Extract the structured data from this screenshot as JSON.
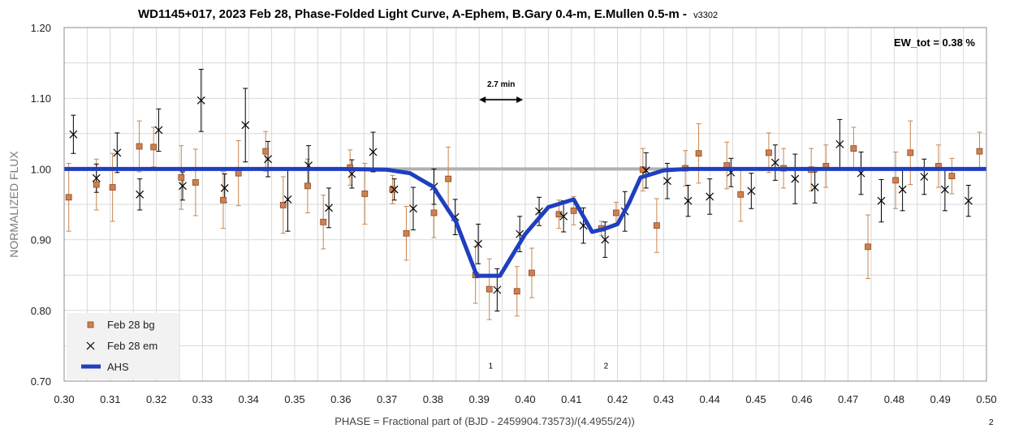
{
  "chart_data": {
    "type": "scatter",
    "title": "WD1145+017, 2023 Feb 28, Phase-Folded Light Curve, A-Ephem, B.Gary 0.4-m, E.Mullen 0.5-m -",
    "title_version": "v3302",
    "xlabel": "PHASE = Fractional part of (BJD - 2459904.73573)/(4.4955/24))",
    "ylabel": "NORMALIZED FLUX",
    "xlim": [
      0.3,
      0.5
    ],
    "ylim": [
      0.7,
      1.2
    ],
    "xticks": [
      0.3,
      0.31,
      0.32,
      0.33,
      0.34,
      0.35,
      0.36,
      0.37,
      0.38,
      0.39,
      0.4,
      0.41,
      0.42,
      0.43,
      0.44,
      0.45,
      0.46,
      0.47,
      0.48,
      0.49,
      0.5
    ],
    "xtick_labels": [
      "0.30",
      "0.31",
      "0.32",
      "0.33",
      "0.34",
      "0.35",
      "0.36",
      "0.37",
      "0.38",
      "0.39",
      "0.40",
      "0.41",
      "0.42",
      "0.43",
      "0.44",
      "0.45",
      "0.46",
      "0.47",
      "0.48",
      "0.49",
      "0.50"
    ],
    "yticks": [
      0.7,
      0.8,
      0.9,
      1.0,
      1.1,
      1.2
    ],
    "ytick_labels": [
      "0.70",
      "0.80",
      "0.90",
      "1.00",
      "1.10",
      "1.20"
    ],
    "grid": true,
    "reference_line": 1.0,
    "legend_position": "bottom-left",
    "annotations": {
      "ew_tot": "EW_tot = 0.38 %",
      "duration": "2.7 min",
      "duration_span": [
        0.39,
        0.3995
      ],
      "duration_y": 1.098,
      "dip1_label": "1",
      "dip1_x": 0.3925,
      "dip2_label": "2",
      "dip2_x": 0.4175,
      "dip_label_y": 0.718,
      "corner_label": "2"
    },
    "colors": {
      "bg": "#d08050",
      "em": "#000000",
      "ahs": "#1f3fbf",
      "reference": "#b0b0b0",
      "grid": "#d9d9d9"
    },
    "series": [
      {
        "name": "Feb 28 bg",
        "marker": "square",
        "points": [
          [
            0.301,
            0.96,
            0.048
          ],
          [
            0.307,
            0.978,
            0.036
          ],
          [
            0.3105,
            0.974,
            0.048
          ],
          [
            0.3163,
            1.032,
            0.036
          ],
          [
            0.3194,
            1.031,
            0.028
          ],
          [
            0.3254,
            0.988,
            0.045
          ],
          [
            0.3285,
            0.981,
            0.047
          ],
          [
            0.3345,
            0.956,
            0.04
          ],
          [
            0.3378,
            0.994,
            0.046
          ],
          [
            0.3437,
            1.025,
            0.028
          ],
          [
            0.3475,
            0.949,
            0.04
          ],
          [
            0.3528,
            0.976,
            0.038
          ],
          [
            0.3562,
            0.925,
            0.038
          ],
          [
            0.362,
            1.002,
            0.025
          ],
          [
            0.3652,
            0.965,
            0.043
          ],
          [
            0.3712,
            0.971,
            0.02
          ],
          [
            0.3742,
            0.909,
            0.038
          ],
          [
            0.3802,
            0.938,
            0.035
          ],
          [
            0.3833,
            0.986,
            0.045
          ],
          [
            0.3892,
            0.85,
            0.04
          ],
          [
            0.3922,
            0.83,
            0.043
          ],
          [
            0.3982,
            0.827,
            0.035
          ],
          [
            0.4014,
            0.853,
            0.035
          ],
          [
            0.4073,
            0.936,
            0.02
          ],
          [
            0.4105,
            0.941,
            0.02
          ],
          [
            0.4165,
            0.916,
            0.01
          ],
          [
            0.4197,
            0.938,
            0.015
          ],
          [
            0.4255,
            0.999,
            0.03
          ],
          [
            0.4285,
            0.92,
            0.038
          ],
          [
            0.4347,
            1.001,
            0.025
          ],
          [
            0.4376,
            1.022,
            0.042
          ],
          [
            0.4437,
            1.005,
            0.033
          ],
          [
            0.4467,
            0.964,
            0.038
          ],
          [
            0.4528,
            1.023,
            0.028
          ],
          [
            0.456,
            1.001,
            0.028
          ],
          [
            0.462,
            0.999,
            0.03
          ],
          [
            0.4652,
            1.004,
            0.03
          ],
          [
            0.4712,
            1.029,
            0.03
          ],
          [
            0.4743,
            0.89,
            0.045
          ],
          [
            0.4803,
            0.984,
            0.04
          ],
          [
            0.4835,
            1.023,
            0.045
          ],
          [
            0.4896,
            1.004,
            0.03
          ],
          [
            0.4925,
            0.99,
            0.025
          ],
          [
            0.4985,
            1.025,
            0.027
          ]
        ]
      },
      {
        "name": "Feb 28 em",
        "marker": "x",
        "points": [
          [
            0.302,
            1.049,
            0.027
          ],
          [
            0.307,
            0.987,
            0.02
          ],
          [
            0.3115,
            1.023,
            0.028
          ],
          [
            0.3164,
            0.964,
            0.022
          ],
          [
            0.3205,
            1.055,
            0.03
          ],
          [
            0.3257,
            0.976,
            0.02
          ],
          [
            0.3297,
            1.097,
            0.044
          ],
          [
            0.3348,
            0.973,
            0.02
          ],
          [
            0.3393,
            1.062,
            0.052
          ],
          [
            0.3442,
            1.014,
            0.025
          ],
          [
            0.3485,
            0.957,
            0.045
          ],
          [
            0.353,
            1.005,
            0.028
          ],
          [
            0.3574,
            0.945,
            0.028
          ],
          [
            0.3624,
            0.993,
            0.02
          ],
          [
            0.367,
            1.024,
            0.028
          ],
          [
            0.3716,
            0.971,
            0.015
          ],
          [
            0.3757,
            0.944,
            0.03
          ],
          [
            0.3802,
            0.975,
            0.025
          ],
          [
            0.3848,
            0.932,
            0.025
          ],
          [
            0.3898,
            0.894,
            0.028
          ],
          [
            0.3939,
            0.829,
            0.03
          ],
          [
            0.3988,
            0.908,
            0.025
          ],
          [
            0.403,
            0.94,
            0.02
          ],
          [
            0.4083,
            0.933,
            0.022
          ],
          [
            0.4126,
            0.92,
            0.025
          ],
          [
            0.4173,
            0.9,
            0.025
          ],
          [
            0.4216,
            0.94,
            0.028
          ],
          [
            0.4262,
            0.998,
            0.025
          ],
          [
            0.4308,
            0.983,
            0.025
          ],
          [
            0.4353,
            0.955,
            0.022
          ],
          [
            0.44,
            0.961,
            0.025
          ],
          [
            0.4446,
            0.995,
            0.02
          ],
          [
            0.449,
            0.969,
            0.025
          ],
          [
            0.4542,
            1.009,
            0.025
          ],
          [
            0.4585,
            0.986,
            0.035
          ],
          [
            0.4628,
            0.974,
            0.022
          ],
          [
            0.4682,
            1.035,
            0.035
          ],
          [
            0.4728,
            0.994,
            0.03
          ],
          [
            0.4772,
            0.955,
            0.03
          ],
          [
            0.4818,
            0.971,
            0.03
          ],
          [
            0.4865,
            0.989,
            0.025
          ],
          [
            0.491,
            0.971,
            0.03
          ],
          [
            0.4961,
            0.955,
            0.022
          ]
        ]
      },
      {
        "name": "AHS",
        "type": "line",
        "x": [
          0.3,
          0.36,
          0.37,
          0.375,
          0.38,
          0.385,
          0.3895,
          0.3945,
          0.4,
          0.405,
          0.4105,
          0.4145,
          0.417,
          0.42,
          0.4225,
          0.425,
          0.427,
          0.43,
          0.435,
          0.5
        ],
        "y": [
          1.0,
          1.0,
          0.999,
          0.994,
          0.975,
          0.925,
          0.849,
          0.849,
          0.908,
          0.946,
          0.957,
          0.911,
          0.915,
          0.922,
          0.952,
          0.988,
          0.992,
          0.998,
          1.0,
          1.0
        ]
      }
    ]
  }
}
